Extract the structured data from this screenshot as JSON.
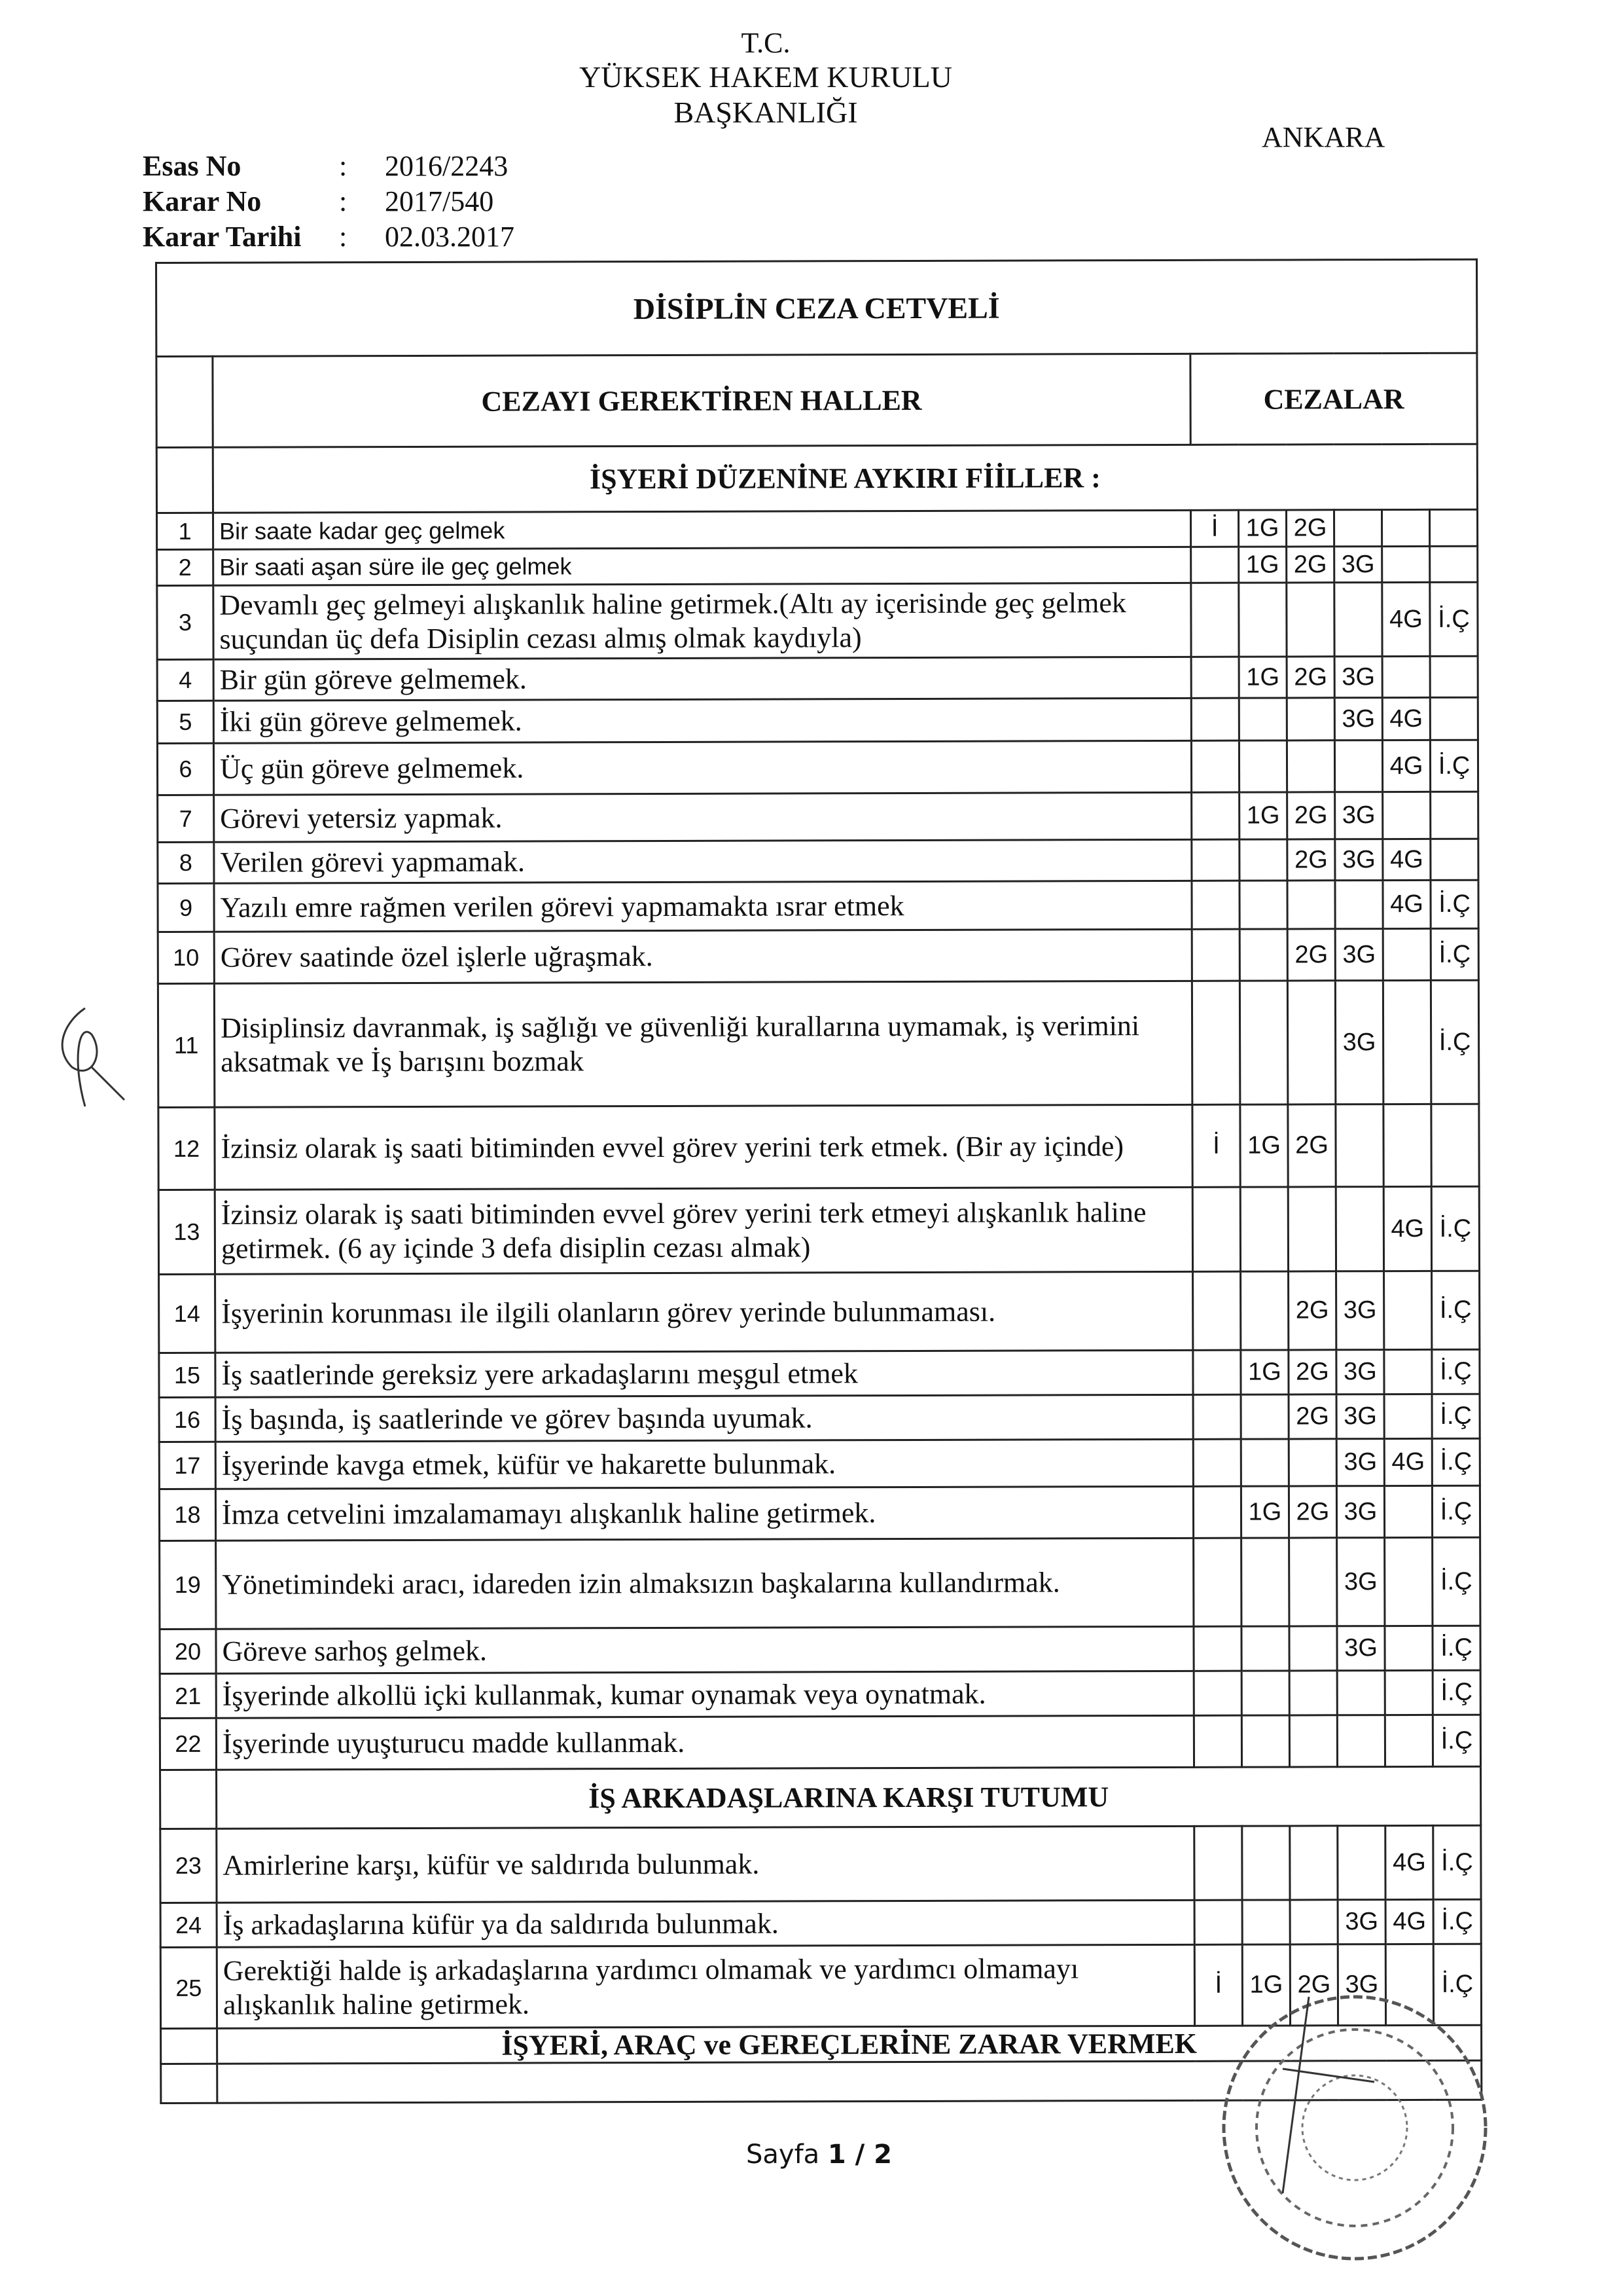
{
  "header": {
    "line1": "T.C.",
    "line2": "YÜKSEK HAKEM KURULU",
    "line3": "BAŞKANLIĞI",
    "city": "ANKARA"
  },
  "meta": [
    {
      "label": "Esas No",
      "sep": ":",
      "value": "2016/2243"
    },
    {
      "label": "Karar No",
      "sep": ":",
      "value": "2017/540"
    },
    {
      "label": "Karar Tarihi",
      "sep": ":",
      "value": "02.03.2017"
    }
  ],
  "table": {
    "title": "DİSİPLİN CEZA CETVELİ",
    "col_cases": "CEZAYI GEREKTİREN HALLER",
    "col_penalties": "CEZALAR",
    "penalty_columns": [
      "İ",
      "1G",
      "2G",
      "3G",
      "4G",
      "İ.Ç"
    ],
    "sections": [
      {
        "title": "İŞYERİ DÜZENİNE AYKIRI FİİLLER :",
        "rows": [
          {
            "no": "1",
            "text": "Bir saate kadar geç gelmek",
            "p": [
              "İ",
              "1G",
              "2G",
              "",
              "",
              ""
            ]
          },
          {
            "no": "2",
            "text": "Bir saati aşan süre ile geç gelmek",
            "p": [
              "",
              "1G",
              "2G",
              "3G",
              "",
              ""
            ]
          },
          {
            "no": "3",
            "text": "Devamlı geç gelmeyi alışkanlık haline getirmek.(Altı ay içerisinde geç gelmek suçundan üç defa Disiplin cezası almış olmak kaydıyla)",
            "p": [
              "",
              "",
              "",
              "",
              "4G",
              "İ.Ç"
            ]
          },
          {
            "no": "4",
            "text": "Bir gün göreve gelmemek.",
            "p": [
              "",
              "1G",
              "2G",
              "3G",
              "",
              ""
            ]
          },
          {
            "no": "5",
            "text": "İki gün göreve gelmemek.",
            "p": [
              "",
              "",
              "",
              "3G",
              "4G",
              ""
            ]
          },
          {
            "no": "6",
            "text": "Üç gün göreve gelmemek.",
            "p": [
              "",
              "",
              "",
              "",
              "4G",
              "İ.Ç"
            ]
          },
          {
            "no": "7",
            "text": "Görevi yetersiz yapmak.",
            "p": [
              "",
              "1G",
              "2G",
              "3G",
              "",
              ""
            ]
          },
          {
            "no": "8",
            "text": "Verilen görevi yapmamak.",
            "p": [
              "",
              "",
              "2G",
              "3G",
              "4G",
              ""
            ]
          },
          {
            "no": "9",
            "text": "Yazılı emre rağmen verilen görevi yapmamakta ısrar etmek",
            "p": [
              "",
              "",
              "",
              "",
              "4G",
              "İ.Ç"
            ]
          },
          {
            "no": "10",
            "text": "Görev saatinde özel işlerle uğraşmak.",
            "p": [
              "",
              "",
              "2G",
              "3G",
              "",
              "İ.Ç"
            ]
          },
          {
            "no": "11",
            "text": "Disiplinsiz davranmak, iş sağlığı ve güvenliği kurallarına uymamak, iş verimini aksatmak ve İş barışını bozmak",
            "p": [
              "",
              "",
              "",
              "3G",
              "",
              "İ.Ç"
            ]
          },
          {
            "no": "12",
            "text": "İzinsiz olarak iş saati bitiminden evvel görev yerini terk etmek. (Bir ay içinde)",
            "p": [
              "İ",
              "1G",
              "2G",
              "",
              "",
              ""
            ]
          },
          {
            "no": "13",
            "text": "İzinsiz olarak iş saati bitiminden evvel görev yerini terk etmeyi alışkanlık haline getirmek. (6 ay içinde 3 defa disiplin cezası almak)",
            "p": [
              "",
              "",
              "",
              "",
              "4G",
              "İ.Ç"
            ]
          },
          {
            "no": "14",
            "text": "İşyerinin korunması ile ilgili olanların görev yerinde bulunmaması.",
            "p": [
              "",
              "",
              "2G",
              "3G",
              "",
              "İ.Ç"
            ]
          },
          {
            "no": "15",
            "text": "İş saatlerinde gereksiz yere arkadaşlarını meşgul etmek",
            "p": [
              "",
              "1G",
              "2G",
              "3G",
              "",
              "İ.Ç"
            ]
          },
          {
            "no": "16",
            "text": "İş başında, iş saatlerinde ve görev başında uyumak.",
            "p": [
              "",
              "",
              "2G",
              "3G",
              "",
              "İ.Ç"
            ]
          },
          {
            "no": "17",
            "text": "İşyerinde kavga etmek, küfür ve hakarette bulunmak.",
            "p": [
              "",
              "",
              "",
              "3G",
              "4G",
              "İ.Ç"
            ]
          },
          {
            "no": "18",
            "text": "İmza cetvelini imzalamamayı alışkanlık haline getirmek.",
            "p": [
              "",
              "1G",
              "2G",
              "3G",
              "",
              "İ.Ç"
            ]
          },
          {
            "no": "19",
            "text": "Yönetimindeki aracı, idareden izin almaksızın başkalarına kullandırmak.",
            "p": [
              "",
              "",
              "",
              "3G",
              "",
              "İ.Ç"
            ]
          },
          {
            "no": "20",
            "text": "Göreve sarhoş gelmek.",
            "p": [
              "",
              "",
              "",
              "3G",
              "",
              "İ.Ç"
            ]
          },
          {
            "no": "21",
            "text": "İşyerinde alkollü içki kullanmak, kumar oynamak veya oynatmak.",
            "p": [
              "",
              "",
              "",
              "",
              "",
              "İ.Ç"
            ]
          },
          {
            "no": "22",
            "text": "İşyerinde uyuşturucu madde kullanmak.",
            "p": [
              "",
              "",
              "",
              "",
              "",
              "İ.Ç"
            ]
          }
        ]
      },
      {
        "title": "İŞ ARKADAŞLARINA KARŞI TUTUMU",
        "rows": [
          {
            "no": "23",
            "text": "Amirlerine karşı, küfür ve saldırıda bulunmak.",
            "p": [
              "",
              "",
              "",
              "",
              "4G",
              "İ.Ç"
            ]
          },
          {
            "no": "24",
            "text": "İş arkadaşlarına küfür ya da saldırıda bulunmak.",
            "p": [
              "",
              "",
              "",
              "3G",
              "4G",
              "İ.Ç"
            ]
          },
          {
            "no": "25",
            "text": "Gerektiği halde iş arkadaşlarına yardımcı olmamak ve yardımcı olmamayı alışkanlık haline getirmek.",
            "p": [
              "İ",
              "1G",
              "2G",
              "3G",
              "",
              "İ.Ç"
            ]
          }
        ]
      },
      {
        "title": "İŞYERİ, ARAÇ ve GEREÇLERİNE ZARAR VERMEK",
        "rows": []
      }
    ]
  },
  "footer": {
    "prefix": "Sayfa ",
    "page": "1 / 2"
  }
}
